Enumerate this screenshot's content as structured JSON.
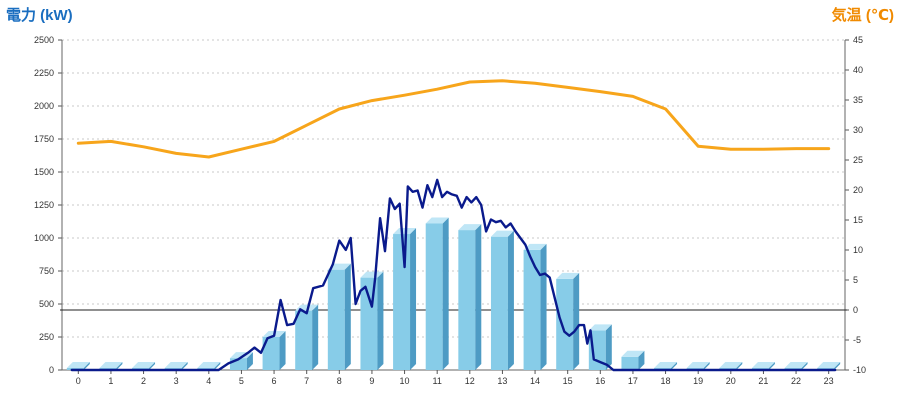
{
  "chart_data": {
    "type": "bar",
    "left_axis_title": "電力 (kW)",
    "right_axis_title": "気温 (℃)",
    "x_categories": [
      "0",
      "1",
      "2",
      "3",
      "4",
      "5",
      "6",
      "7",
      "8",
      "9",
      "10",
      "11",
      "12",
      "13",
      "14",
      "15",
      "16",
      "17",
      "18",
      "19",
      "20",
      "21",
      "22",
      "23"
    ],
    "y_left": {
      "min": 0,
      "max": 2500,
      "ticks": [
        "0",
        "250",
        "500",
        "750",
        "1000",
        "1250",
        "1500",
        "1750",
        "2000",
        "2250",
        "2500"
      ]
    },
    "y_right": {
      "min": -10,
      "max": 45,
      "ticks": [
        "-10",
        "-5",
        "0",
        "5",
        "10",
        "15",
        "20",
        "25",
        "30",
        "35",
        "40",
        "45"
      ]
    },
    "grid": true,
    "zero_reference_line_right_axis": 0,
    "colors": {
      "bar_front": "#87cce8",
      "bar_side": "#4e9bc4",
      "bar_top": "#bfe6f6",
      "power_line": "#0a1a8c",
      "temperature_line": "#f7a51b",
      "left_title": "#1a6ec0",
      "right_title": "#f08a00",
      "grid": "#c8c8c8"
    },
    "series": [
      {
        "kind": "bar",
        "axis": "left",
        "values": [
          15,
          15,
          15,
          15,
          15,
          90,
          250,
          450,
          760,
          700,
          1030,
          1110,
          1060,
          1010,
          910,
          690,
          300,
          100,
          15,
          15,
          15,
          15,
          15,
          15
        ]
      },
      {
        "kind": "line",
        "axis": "left",
        "x": [
          -0.2,
          0.5,
          1,
          1.5,
          2,
          2.5,
          3,
          3.5,
          4,
          4.3,
          4.6,
          4.9,
          5.2,
          5.4,
          5.6,
          5.8,
          6,
          6.2,
          6.4,
          6.6,
          6.8,
          7,
          7.2,
          7.5,
          7.8,
          8,
          8.2,
          8.35,
          8.5,
          8.65,
          8.8,
          9,
          9.1,
          9.25,
          9.4,
          9.55,
          9.7,
          9.85,
          10,
          10.1,
          10.25,
          10.4,
          10.55,
          10.7,
          10.85,
          11,
          11.15,
          11.3,
          11.45,
          11.6,
          11.75,
          11.9,
          12.05,
          12.2,
          12.35,
          12.5,
          12.65,
          12.8,
          12.95,
          13.1,
          13.25,
          13.4,
          13.55,
          13.7,
          13.85,
          14,
          14.15,
          14.3,
          14.45,
          14.6,
          14.75,
          14.9,
          15.05,
          15.2,
          15.35,
          15.5,
          15.6,
          15.7,
          15.8,
          16,
          16.2,
          16.4,
          16.6,
          16.7,
          16.8,
          16.9,
          17,
          17.2,
          17.4,
          17.6,
          18,
          18.5,
          19,
          20,
          21,
          22,
          23.2
        ],
        "values": [
          0,
          0,
          0,
          0,
          0,
          0,
          0,
          0,
          0,
          0,
          50,
          80,
          130,
          170,
          130,
          240,
          260,
          530,
          340,
          350,
          460,
          430,
          620,
          640,
          800,
          980,
          910,
          1000,
          500,
          600,
          630,
          480,
          700,
          1150,
          900,
          1300,
          1220,
          1260,
          780,
          1390,
          1350,
          1360,
          1230,
          1400,
          1310,
          1440,
          1310,
          1350,
          1330,
          1320,
          1230,
          1310,
          1270,
          1310,
          1250,
          1050,
          1140,
          1120,
          1130,
          1080,
          1110,
          1050,
          1000,
          950,
          860,
          780,
          720,
          730,
          700,
          550,
          400,
          290,
          260,
          290,
          340,
          340,
          200,
          300,
          80,
          60,
          40,
          0,
          0,
          0,
          0,
          0,
          0,
          0,
          0,
          0,
          0,
          0,
          0,
          0,
          0,
          0,
          0
        ],
        "comment_x": "hour positions (0-23 scale)"
      },
      {
        "kind": "line",
        "axis": "right",
        "x": [
          0,
          1,
          2,
          3,
          4,
          5,
          6,
          7,
          8,
          9,
          10,
          11,
          12,
          13,
          14,
          15,
          16,
          17,
          18,
          19,
          20,
          21,
          22,
          23
        ],
        "values": [
          27.8,
          28.1,
          27.2,
          26.1,
          25.5,
          26.8,
          28.1,
          30.8,
          33.5,
          34.9,
          35.8,
          36.8,
          38.0,
          38.2,
          37.8,
          37.1,
          36.4,
          35.6,
          33.5,
          27.3,
          26.8,
          26.8,
          26.9,
          26.9
        ]
      }
    ]
  }
}
